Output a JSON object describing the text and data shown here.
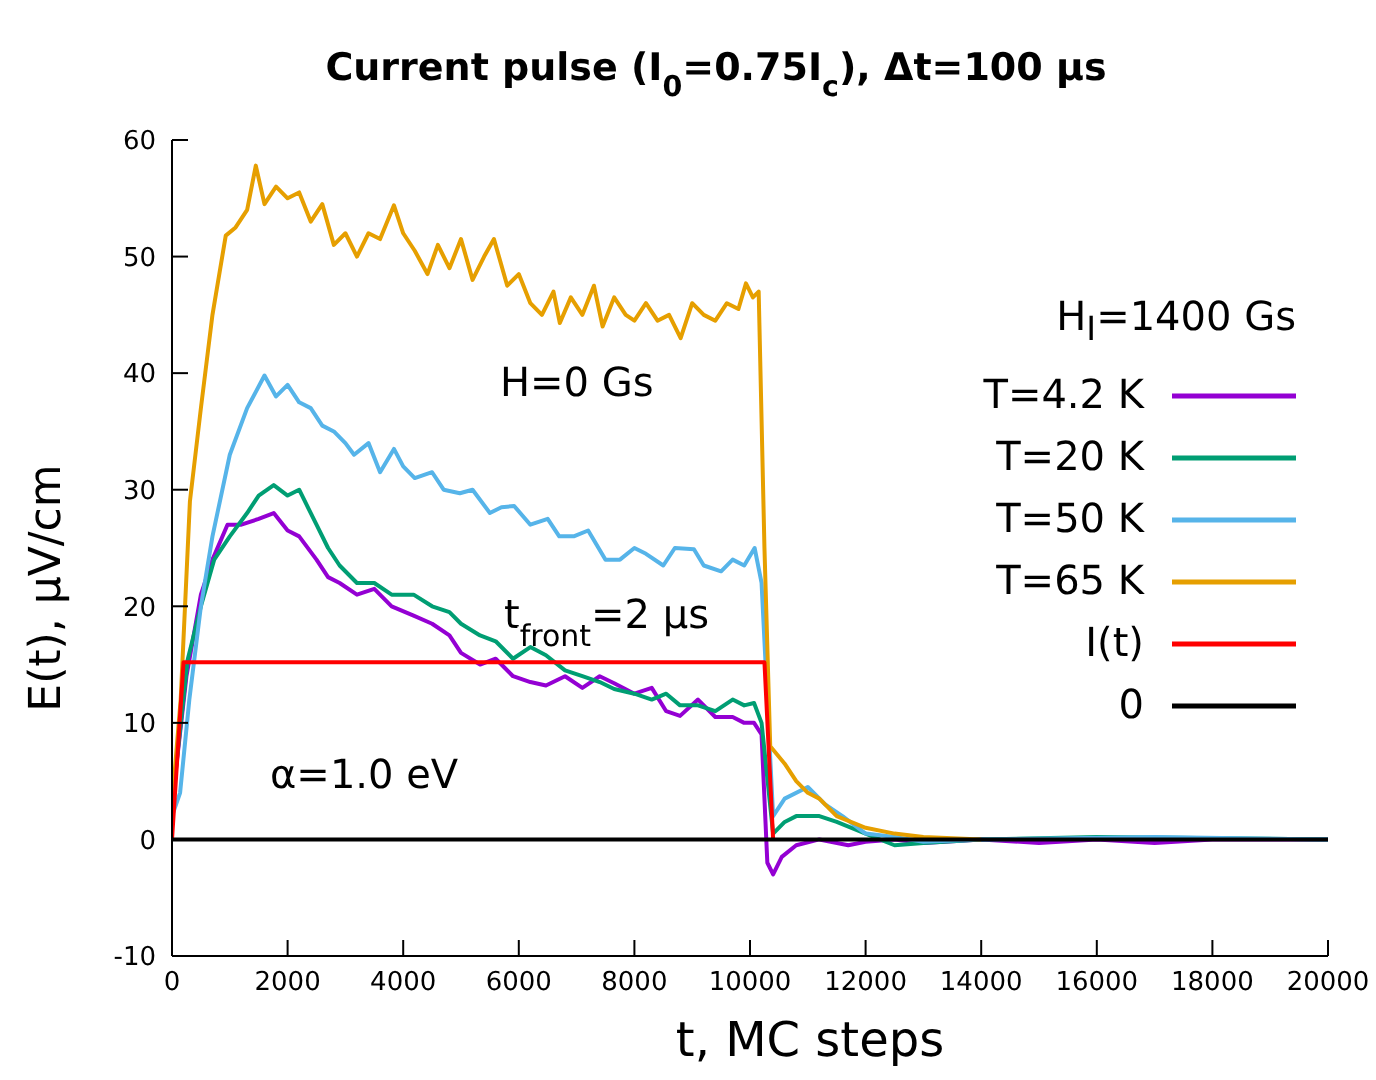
{
  "chart_data": {
    "type": "line",
    "title": "Current pulse (I$_{0}$=0.75I$_{c}$), Δt=100 μs",
    "xlabel": "t, MC steps",
    "ylabel": "E(t), μV/cm",
    "legend_title": "H$_{I}$=1400 Gs",
    "annotations": [
      "H=0 Gs",
      "t$_{front}$=2 μs",
      "α=1.0 eV"
    ],
    "xlim": [
      0,
      20000
    ],
    "xticks": [
      0,
      2000,
      4000,
      6000,
      8000,
      10000,
      12000,
      14000,
      16000,
      18000,
      20000
    ],
    "ylim": [
      -10,
      60
    ],
    "yticks": [
      -10,
      0,
      10,
      20,
      30,
      40,
      50,
      60
    ],
    "grid": false,
    "legend": "right",
    "marker": "none",
    "line_style": "solid",
    "series": [
      {
        "name": "T=4.2 K",
        "color": "#9400d3",
        "x": [
          0,
          250,
          500,
          700,
          960,
          1200,
          1500,
          1760,
          2000,
          2200,
          2500,
          2700,
          2900,
          3200,
          3500,
          3800,
          4180,
          4500,
          4800,
          5000,
          5330,
          5600,
          5900,
          6200,
          6470,
          6800,
          7100,
          7400,
          7650,
          8000,
          8300,
          8550,
          8790,
          9100,
          9400,
          9700,
          9900,
          10070,
          10200,
          10300,
          10400,
          10550,
          10800,
          11200,
          11700,
          12000,
          12500,
          13000,
          14000,
          15000,
          16000,
          17000,
          18000,
          20000
        ],
        "values": [
          3,
          14,
          21,
          24,
          27,
          27,
          27.5,
          28,
          26.5,
          26,
          24,
          22.5,
          22,
          21,
          21.5,
          20,
          19.2,
          18.5,
          17.5,
          16,
          15,
          15.5,
          14,
          13.5,
          13.2,
          14,
          13,
          14,
          13.4,
          12.5,
          13,
          11,
          10.6,
          12,
          10.5,
          10.5,
          10,
          10,
          9,
          -2,
          -3,
          -1.5,
          -0.5,
          0,
          -0.5,
          -0.2,
          0,
          -0.3,
          0,
          -0.3,
          0,
          -0.3,
          0,
          0
        ]
      },
      {
        "name": "T=20 K",
        "color": "#009e73",
        "x": [
          0,
          270,
          500,
          730,
          1000,
          1300,
          1500,
          1760,
          2000,
          2200,
          2500,
          2700,
          2900,
          3200,
          3500,
          3800,
          4180,
          4500,
          4800,
          5000,
          5330,
          5600,
          5900,
          6200,
          6470,
          6800,
          7100,
          7400,
          7650,
          8000,
          8300,
          8550,
          8790,
          9100,
          9400,
          9700,
          9900,
          10070,
          10200,
          10400,
          10600,
          10800,
          11200,
          11500,
          12000,
          12500,
          13000,
          14000,
          16000,
          20000
        ],
        "values": [
          3,
          15.4,
          20,
          24,
          26,
          28,
          29.5,
          30.4,
          29.5,
          30,
          27,
          25,
          23.5,
          22,
          22,
          21,
          21,
          20,
          19.5,
          18.5,
          17.5,
          17,
          15.5,
          16.5,
          15.8,
          14.5,
          14,
          13.5,
          12.9,
          12.5,
          12,
          12.5,
          11.5,
          11.5,
          11,
          12,
          11.5,
          11.7,
          10,
          0.5,
          1.5,
          2,
          2,
          1.5,
          0.5,
          -0.5,
          -0.3,
          0,
          0.2,
          0
        ]
      },
      {
        "name": "T=50 K",
        "color": "#56b4e9",
        "x": [
          0,
          140,
          300,
          500,
          700,
          1000,
          1300,
          1600,
          1800,
          2000,
          2200,
          2400,
          2600,
          2800,
          3000,
          3150,
          3400,
          3600,
          3840,
          4000,
          4200,
          4500,
          4700,
          4980,
          5200,
          5500,
          5700,
          5920,
          6200,
          6500,
          6700,
          6950,
          7200,
          7500,
          7750,
          8000,
          8200,
          8500,
          8700,
          9030,
          9200,
          9500,
          9700,
          9900,
          10080,
          10200,
          10400,
          10600,
          11000,
          11300,
          11600,
          12000,
          12500,
          13000,
          14000,
          17000,
          20000
        ],
        "values": [
          2,
          4,
          12,
          20,
          26,
          33,
          37,
          39.8,
          38,
          39,
          37.5,
          37,
          35.5,
          35,
          34,
          33,
          34,
          31.5,
          33.5,
          32,
          31,
          31.5,
          30,
          29.7,
          30,
          28,
          28.5,
          28.6,
          27,
          27.5,
          26,
          26,
          26.5,
          24,
          24,
          25,
          24.5,
          23.5,
          25,
          24.9,
          23.5,
          23,
          24,
          23.5,
          25,
          22,
          2,
          3.5,
          4.5,
          3,
          2,
          0.5,
          0.2,
          -0.2,
          0,
          0.2,
          0
        ]
      },
      {
        "name": "T=65 K",
        "color": "#e69f00",
        "x": [
          0,
          150,
          310,
          500,
          700,
          930,
          1100,
          1300,
          1450,
          1600,
          1800,
          2000,
          2200,
          2400,
          2600,
          2800,
          3000,
          3200,
          3400,
          3600,
          3840,
          4000,
          4200,
          4420,
          4600,
          4800,
          5000,
          5200,
          5400,
          5570,
          5800,
          6000,
          6200,
          6400,
          6600,
          6710,
          6900,
          7100,
          7300,
          7450,
          7650,
          7850,
          8000,
          8200,
          8400,
          8600,
          8800,
          9000,
          9200,
          9400,
          9600,
          9800,
          9930,
          10050,
          10150,
          10250,
          10350,
          10600,
          10800,
          11000,
          11200,
          11500,
          12000,
          12500,
          13000,
          14000
        ],
        "values": [
          3,
          12,
          29,
          37,
          45,
          51.8,
          52.5,
          54,
          57.8,
          54.5,
          56,
          55,
          55.5,
          53,
          54.5,
          51,
          52,
          50,
          52,
          51.5,
          54.4,
          52,
          50.5,
          48.5,
          51,
          49,
          51.5,
          48,
          50,
          51.5,
          47.5,
          48.5,
          46,
          45,
          47,
          44.3,
          46.5,
          45,
          47.5,
          44,
          46.5,
          45,
          44.5,
          46,
          44.5,
          45,
          43,
          46,
          45,
          44.5,
          46,
          45.5,
          47.7,
          46.5,
          47,
          25,
          8,
          6.5,
          5,
          4,
          3.5,
          2,
          1,
          0.5,
          0.2,
          0
        ]
      },
      {
        "name": "I(t)",
        "color": "#ff0000",
        "x": [
          0,
          200,
          10250,
          10400
        ],
        "values": [
          0,
          15.2,
          15.2,
          0
        ]
      },
      {
        "name": "0",
        "color": "#000000",
        "x": [
          0,
          20000
        ],
        "values": [
          0,
          0
        ]
      }
    ]
  }
}
